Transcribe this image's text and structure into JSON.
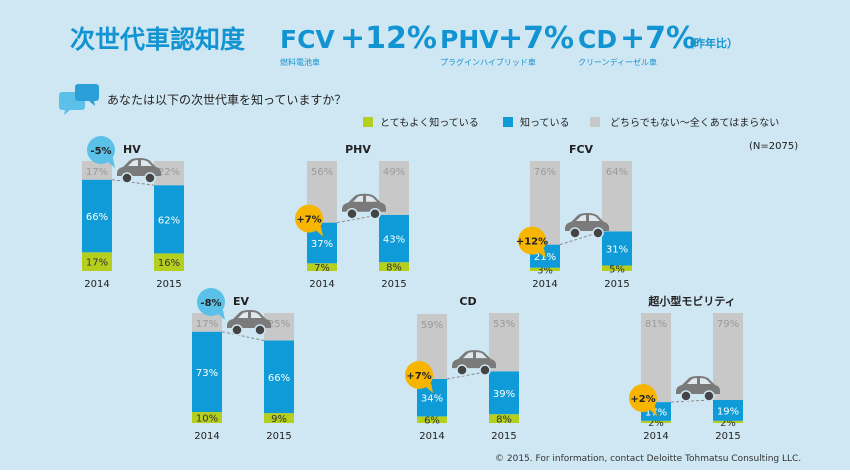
{
  "header": {
    "title": "次世代車認知度",
    "highlights": [
      {
        "name": "FCV",
        "change": "+12%",
        "sub": "燃料電池車"
      },
      {
        "name": "PHV",
        "change": "+7%",
        "sub": "プラグインハイブリッド車"
      },
      {
        "name": "CD",
        "change": "+7%",
        "sub": "クリーンディーゼル車"
      }
    ],
    "yoy_note": "（昨年比）"
  },
  "question": "あなたは以下の次世代車を知っていますか？",
  "sample_size": "(N=2075)",
  "copyright": "© 2015. For information, contact Deloitte Tohmatsu Consulting LLC.",
  "colors": {
    "very_well": "#b5cf1f",
    "know": "#0f9bd7",
    "neither": "#c8c8c8",
    "badge_up": "#f7b500",
    "badge_down": "#5bc1e9",
    "title": "#1394d2"
  },
  "chart_data": {
    "type": "bar",
    "stacked": true,
    "legend": {
      "placement": "top",
      "entries": [
        "とてもよく知っている",
        "知っている",
        "どちらでもない～全くあてはまらない"
      ]
    },
    "panels": [
      {
        "label": "HV",
        "change": "-5%",
        "categories": [
          "2014",
          "2015"
        ],
        "series": [
          {
            "name": "とてもよく知っている",
            "values": [
              17,
              16
            ]
          },
          {
            "name": "知っている",
            "values": [
              66,
              62
            ]
          },
          {
            "name": "どちらでもない～全くあてはまらない",
            "values": [
              17,
              22
            ]
          }
        ]
      },
      {
        "label": "PHV",
        "change": "+7%",
        "categories": [
          "2014",
          "2015"
        ],
        "series": [
          {
            "name": "とてもよく知っている",
            "values": [
              7,
              8
            ]
          },
          {
            "name": "知っている",
            "values": [
              37,
              43
            ]
          },
          {
            "name": "どちらでもない～全くあてはまらない",
            "values": [
              56,
              49
            ]
          }
        ]
      },
      {
        "label": "FCV",
        "change": "+12%",
        "categories": [
          "2014",
          "2015"
        ],
        "series": [
          {
            "name": "とてもよく知っている",
            "values": [
              3,
              5
            ]
          },
          {
            "name": "知っている",
            "values": [
              21,
              31
            ]
          },
          {
            "name": "どちらでもない～全くあてはまらない",
            "values": [
              76,
              64
            ]
          }
        ]
      },
      {
        "label": "EV",
        "change": "-8%",
        "categories": [
          "2014",
          "2015"
        ],
        "series": [
          {
            "name": "とてもよく知っている",
            "values": [
              10,
              9
            ]
          },
          {
            "name": "知っている",
            "values": [
              73,
              66
            ]
          },
          {
            "name": "どちらでもない～全くあてはまらない",
            "values": [
              17,
              25
            ]
          }
        ]
      },
      {
        "label": "CD",
        "change": "+7%",
        "categories": [
          "2014",
          "2015"
        ],
        "series": [
          {
            "name": "とてもよく知っている",
            "values": [
              6,
              8
            ]
          },
          {
            "name": "知っている",
            "values": [
              34,
              39
            ]
          },
          {
            "name": "どちらでもない～全くあてはまらない",
            "values": [
              59,
              53
            ]
          }
        ]
      },
      {
        "label": "超小型モビリティ",
        "change": "+2%",
        "categories": [
          "2014",
          "2015"
        ],
        "series": [
          {
            "name": "とてもよく知っている",
            "values": [
              2,
              2
            ]
          },
          {
            "name": "知っている",
            "values": [
              17,
              19
            ]
          },
          {
            "name": "どちらでもない～全くあてはまらない",
            "values": [
              81,
              79
            ]
          }
        ]
      }
    ]
  }
}
